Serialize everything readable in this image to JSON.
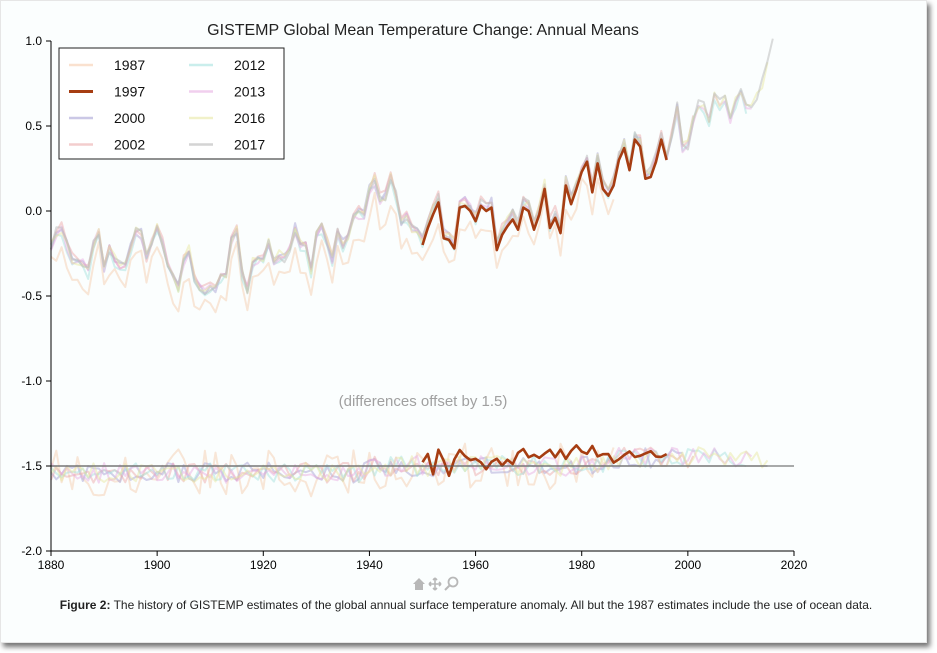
{
  "title": "GISTEMP Global Mean Temperature Change: Annual Means",
  "offset_note": "(differences offset by 1.5)",
  "caption": {
    "label": "Figure 2:",
    "text": "The history of GISTEMP estimates of the global annual surface temperature anomaly. All but the 1987 estimates include the use of ocean data."
  },
  "toolbar_icons": [
    "home-icon",
    "pan-icon",
    "zoom-icon"
  ],
  "chart_data": {
    "type": "line",
    "title": "GISTEMP Global Mean Temperature Change: Annual Means",
    "xlim": [
      1880,
      2020
    ],
    "ylim": [
      -2.0,
      1.0
    ],
    "x_ticks": [
      "1880",
      "1900",
      "1920",
      "1940",
      "1960",
      "1980",
      "2000",
      "2020"
    ],
    "y_ticks": [
      "1.0",
      "0.5",
      "0.0",
      "-0.5",
      "-1.0",
      "-1.5",
      "-2.0"
    ],
    "reference_line_y": -1.5,
    "legend_position": "top-left",
    "series": [
      {
        "name": "1987",
        "color": "#f5c9a8",
        "opacity": 0.45,
        "start": 1880,
        "shift": 0.15
      },
      {
        "name": "1997",
        "color": "#a63d12",
        "opacity": 1.0,
        "start": 1950,
        "shift": -0.03
      },
      {
        "name": "2000",
        "color": "#a9a4d6",
        "opacity": 0.5,
        "start": 1880,
        "shift": 0.0
      },
      {
        "name": "2002",
        "color": "#eaa4a4",
        "opacity": 0.45,
        "start": 1880,
        "shift": 0.01
      },
      {
        "name": "2012",
        "color": "#9fe0dc",
        "opacity": 0.45,
        "start": 1880,
        "shift": -0.02
      },
      {
        "name": "2013",
        "color": "#e6a8e0",
        "opacity": 0.45,
        "start": 1880,
        "shift": -0.01
      },
      {
        "name": "2016",
        "color": "#e6e69c",
        "opacity": 0.45,
        "start": 1880,
        "shift": 0.0
      },
      {
        "name": "2017",
        "color": "#bdbdbd",
        "opacity": 0.55,
        "start": 1880,
        "shift": 0.0
      }
    ],
    "anomaly_start_year": 1880,
    "anomaly_values": [
      -0.2,
      -0.12,
      -0.1,
      -0.2,
      -0.28,
      -0.3,
      -0.3,
      -0.35,
      -0.2,
      -0.12,
      -0.35,
      -0.22,
      -0.28,
      -0.32,
      -0.32,
      -0.22,
      -0.12,
      -0.13,
      -0.28,
      -0.18,
      -0.1,
      -0.18,
      -0.3,
      -0.38,
      -0.45,
      -0.3,
      -0.22,
      -0.4,
      -0.45,
      -0.46,
      -0.45,
      -0.45,
      -0.37,
      -0.37,
      -0.17,
      -0.12,
      -0.37,
      -0.46,
      -0.3,
      -0.27,
      -0.28,
      -0.18,
      -0.28,
      -0.26,
      -0.28,
      -0.21,
      -0.1,
      -0.2,
      -0.2,
      -0.35,
      -0.14,
      -0.09,
      -0.17,
      -0.29,
      -0.13,
      -0.19,
      -0.15,
      -0.03,
      -0.01,
      -0.02,
      0.13,
      0.19,
      0.07,
      0.09,
      0.2,
      0.09,
      -0.07,
      -0.03,
      -0.11,
      -0.11,
      -0.17,
      -0.07,
      0.01,
      0.08,
      -0.13,
      -0.14,
      -0.19,
      0.05,
      0.06,
      0.03,
      -0.03,
      0.06,
      0.03,
      0.05,
      -0.2,
      -0.11,
      -0.06,
      -0.02,
      -0.08,
      0.05,
      0.03,
      -0.08,
      0.01,
      0.16,
      -0.07,
      -0.01,
      -0.1,
      0.18,
      0.07,
      0.16,
      0.26,
      0.32,
      0.14,
      0.31,
      0.16,
      0.12,
      0.18,
      0.33,
      0.4,
      0.27,
      0.45,
      0.41,
      0.22,
      0.23,
      0.32,
      0.45,
      0.33,
      0.46,
      0.61,
      0.38,
      0.39,
      0.54,
      0.63,
      0.62,
      0.54,
      0.68,
      0.64,
      0.67,
      0.54,
      0.65,
      0.72,
      0.61,
      0.64,
      0.68,
      0.75,
      0.9,
      1.01
    ],
    "difference_values": [
      0.02,
      0.06,
      -0.03,
      0.08,
      0.03,
      -0.05,
      0.02,
      0.08,
      0.04,
      0.05,
      0.03,
      0.02,
      -0.01,
      0.04,
      0.06,
      0.02,
      0.05,
      0.03,
      0.07,
      0.09,
      0.06,
      0.08,
      0.05,
      0.07,
      0.08,
      0.06,
      0.08,
      0.04,
      0.1,
      0.11,
      0.08,
      0.09,
      0.1,
      0.06,
      0.08,
      0.06,
      0.02,
      0.04,
      0.06,
      0.09,
      0.07
    ]
  }
}
